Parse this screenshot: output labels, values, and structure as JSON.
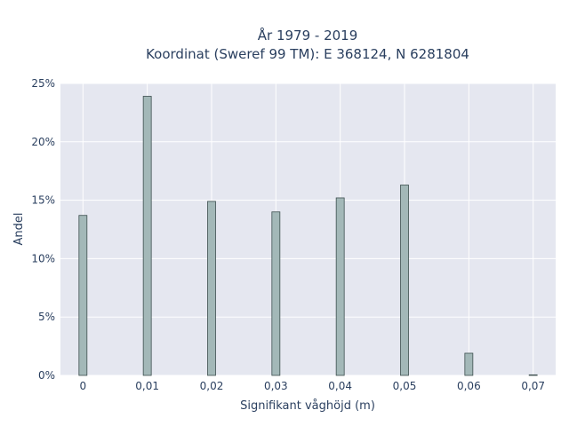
{
  "chart_data": {
    "type": "bar",
    "title_line1": "År 1979 - 2019",
    "title_line2": "Koordinat (Sweref 99 TM): E 368124, N 6281804",
    "xlabel": "Signifikant våghöjd (m)",
    "ylabel": "Andel",
    "x": [
      0,
      0.01,
      0.02,
      0.03,
      0.04,
      0.05,
      0.06,
      0.07
    ],
    "values": [
      13.7,
      23.9,
      14.9,
      14.0,
      15.2,
      16.3,
      1.9,
      0.05
    ],
    "xlim": [
      -0.0035,
      0.0735
    ],
    "ylim": [
      0,
      25
    ],
    "x_ticks": [
      {
        "value": 0,
        "label": "0"
      },
      {
        "value": 0.01,
        "label": "0,01"
      },
      {
        "value": 0.02,
        "label": "0,02"
      },
      {
        "value": 0.03,
        "label": "0,03"
      },
      {
        "value": 0.04,
        "label": "0,04"
      },
      {
        "value": 0.05,
        "label": "0,05"
      },
      {
        "value": 0.06,
        "label": "0,06"
      },
      {
        "value": 0.07,
        "label": "0,07"
      }
    ],
    "y_ticks": [
      {
        "value": 0,
        "label": "0%"
      },
      {
        "value": 5,
        "label": "5%"
      },
      {
        "value": 10,
        "label": "10%"
      },
      {
        "value": 15,
        "label": "15%"
      },
      {
        "value": 20,
        "label": "20%"
      },
      {
        "value": 25,
        "label": "25%"
      }
    ],
    "grid": true,
    "colors": {
      "plot_background": "#e5e7f0",
      "grid": "#ffffff",
      "bar_fill": "#a3b8b8",
      "bar_stroke": "#3d4f4f",
      "text": "#2a3f5f"
    }
  }
}
